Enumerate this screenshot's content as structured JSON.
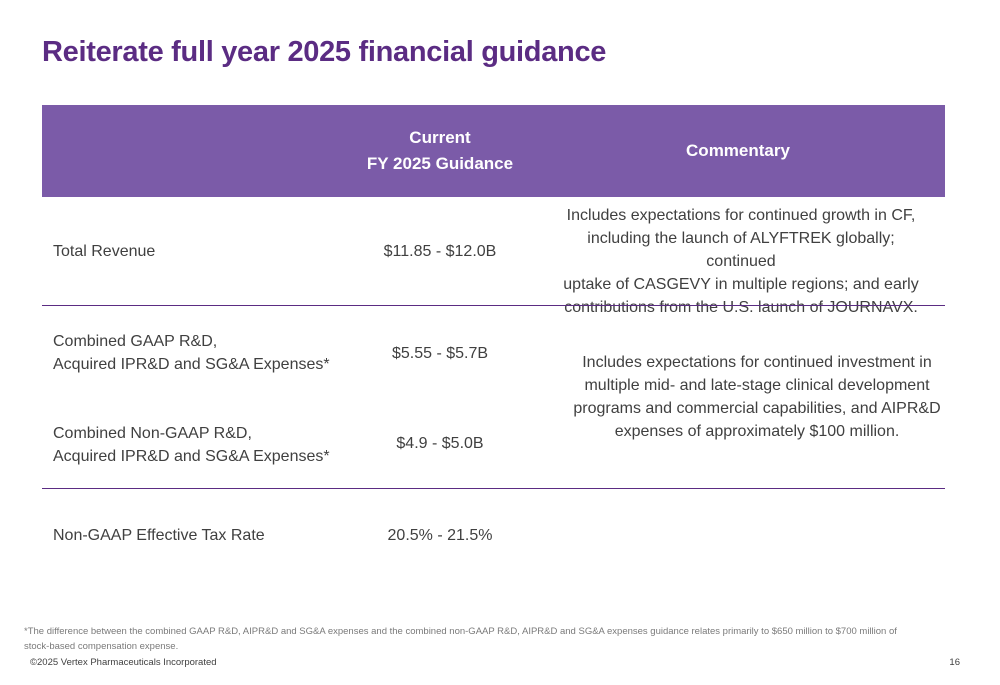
{
  "title": "Reiterate full year 2025 financial guidance",
  "header": {
    "guidance_line1": "Current",
    "guidance_line2": "FY 2025 Guidance",
    "commentary": "Commentary"
  },
  "rows": {
    "revenue": {
      "label": "Total Revenue",
      "value": "$11.85 - $12.0B",
      "commentary": [
        "Includes expectations for continued growth in CF,",
        "including the launch of ALYFTREK globally; continued",
        "uptake of CASGEVY in multiple regions; and early",
        "contributions from the U.S. launch of JOURNAVX."
      ]
    },
    "gaap": {
      "label_line1": "Combined GAAP R&D,",
      "label_line2": "Acquired IPR&D and SG&A Expenses*",
      "value": "$5.55 - $5.7B"
    },
    "non_gaap": {
      "label_line1": "Combined Non-GAAP R&D,",
      "label_line2": "Acquired IPR&D and SG&A Expenses*",
      "value": "$4.9 - $5.0B"
    },
    "expenses_commentary": [
      "Includes expectations for continued investment in",
      "multiple mid- and late-stage clinical development",
      "programs and commercial capabilities, and AIPR&D",
      "expenses of approximately $100 million."
    ],
    "tax": {
      "label": "Non-GAAP Effective Tax Rate",
      "value": "20.5% - 21.5%"
    }
  },
  "footnote": "*The difference between the combined GAAP R&D, AIPR&D and SG&A expenses and the combined non-GAAP R&D, AIPR&D and SG&A expenses guidance relates primarily to $650 million to $700 million of stock-based compensation expense.",
  "copyright": "©2025 Vertex Pharmaceuticals Incorporated",
  "page_number": "16",
  "colors": {
    "title": "#5b2c83",
    "header_bg": "#7b5ba8",
    "rule": "#5b2c83"
  }
}
